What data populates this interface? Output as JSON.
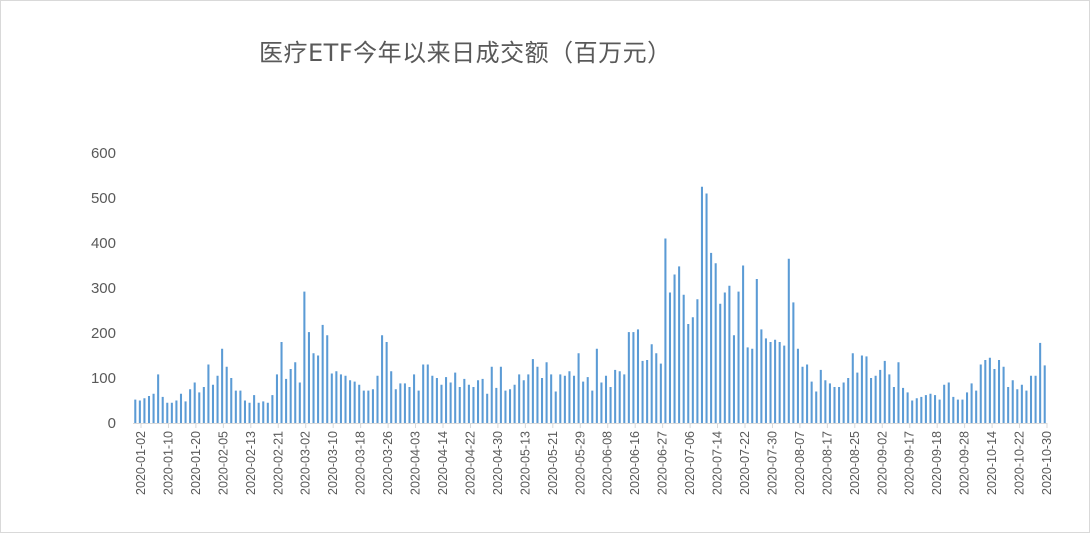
{
  "chart_data": {
    "type": "bar",
    "title": "医疗ETF今年以来日成交额（百万元）",
    "xlabel": "",
    "ylabel": "",
    "ylim": [
      0,
      600
    ],
    "yticks": [
      0,
      100,
      200,
      300,
      400,
      500,
      600
    ],
    "grid": false,
    "legend": "none",
    "bar_color": "#5b9bd5",
    "x_tick_labels": [
      "2020-01-02",
      "2020-01-10",
      "2020-01-20",
      "2020-02-05",
      "2020-02-13",
      "2020-02-21",
      "2020-03-02",
      "2020-03-10",
      "2020-03-18",
      "2020-03-26",
      "2020-04-03",
      "2020-04-14",
      "2020-04-22",
      "2020-04-30",
      "2020-05-13",
      "2020-05-21",
      "2020-05-29",
      "2020-06-08",
      "2020-06-16",
      "2020-06-27",
      "2020-07-06",
      "2020-07-14",
      "2020-07-22",
      "2020-07-30",
      "2020-08-07",
      "2020-08-17",
      "2020-08-25",
      "2020-09-02",
      "2020-09-17",
      "2020-09-18",
      "2020-09-28",
      "2020-10-14",
      "2020-10-22",
      "2020-10-30"
    ],
    "values": [
      52,
      50,
      55,
      60,
      65,
      108,
      58,
      45,
      45,
      50,
      65,
      48,
      75,
      90,
      68,
      80,
      130,
      85,
      105,
      165,
      125,
      100,
      72,
      72,
      50,
      45,
      62,
      45,
      48,
      45,
      62,
      108,
      180,
      98,
      120,
      135,
      90,
      292,
      202,
      155,
      150,
      218,
      195,
      110,
      115,
      108,
      105,
      95,
      92,
      85,
      72,
      72,
      75,
      105,
      195,
      180,
      115,
      75,
      88,
      88,
      80,
      108,
      72,
      130,
      130,
      105,
      100,
      85,
      102,
      90,
      112,
      80,
      98,
      85,
      80,
      95,
      98,
      65,
      125,
      78,
      125,
      72,
      75,
      85,
      108,
      95,
      108,
      142,
      125,
      100,
      135,
      108,
      70,
      108,
      105,
      115,
      105,
      155,
      92,
      102,
      72,
      165,
      90,
      105,
      80,
      118,
      115,
      108,
      202,
      202,
      208,
      138,
      140,
      175,
      155,
      132,
      410,
      290,
      330,
      348,
      285,
      220,
      235,
      275,
      525,
      510,
      378,
      355,
      265,
      290,
      305,
      195,
      292,
      350,
      168,
      165,
      320,
      208,
      188,
      180,
      185,
      180,
      172,
      365,
      268,
      165,
      125,
      130,
      92,
      70,
      118,
      95,
      88,
      80,
      80,
      90,
      100,
      155,
      112,
      150,
      148,
      100,
      105,
      118,
      138,
      108,
      80,
      135,
      78,
      68,
      50,
      55,
      58,
      62,
      65,
      62,
      52,
      85,
      90,
      58,
      52,
      52,
      68,
      88,
      72,
      130,
      140,
      145,
      120,
      140,
      125,
      80,
      95,
      75,
      85,
      72,
      105,
      105,
      178,
      128
    ]
  }
}
